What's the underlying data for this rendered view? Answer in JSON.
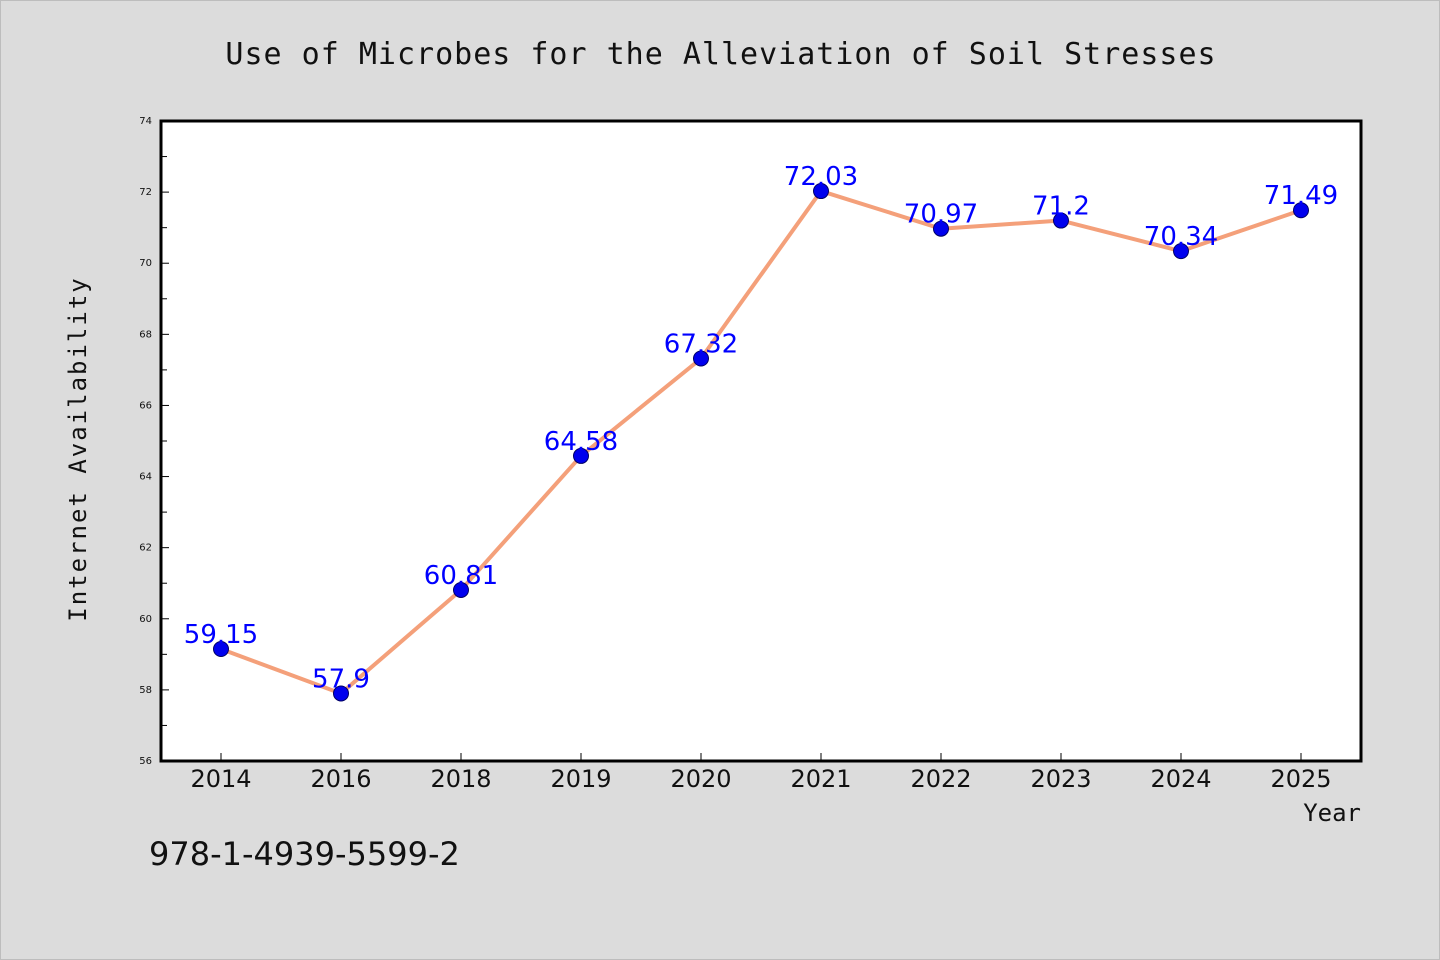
{
  "chart_data": {
    "type": "line",
    "title": "Use of Microbes for the Alleviation of Soil Stresses",
    "xlabel": "Year",
    "ylabel": "Internet Availability",
    "categories": [
      "2014",
      "2016",
      "2018",
      "2019",
      "2020",
      "2021",
      "2022",
      "2023",
      "2024",
      "2025"
    ],
    "series": [
      {
        "values": [
          59.15,
          57.9,
          60.81,
          64.58,
          67.32,
          72.03,
          70.97,
          71.2,
          70.34,
          71.49
        ],
        "line_color": "#f4a07a",
        "marker_color": "#0000ee"
      }
    ],
    "data_labels": [
      "59.15",
      "57.9",
      "60.81",
      "64.58",
      "67.32",
      "72.03",
      "70.97",
      "71.2",
      "70.34",
      "71.49"
    ],
    "ylim": [
      56,
      74
    ],
    "yticks": [
      "56",
      "58",
      "60",
      "62",
      "64",
      "66",
      "68",
      "70",
      "72",
      "74"
    ],
    "grid": false,
    "legend": "none"
  },
  "footer": {
    "text": "978-1-4939-5599-2"
  },
  "colors": {
    "background": "#dcdcdc",
    "plot_background": "#ffffff",
    "line": "#f4a07a",
    "marker": "#0000ee",
    "data_label": "#0000ff"
  }
}
